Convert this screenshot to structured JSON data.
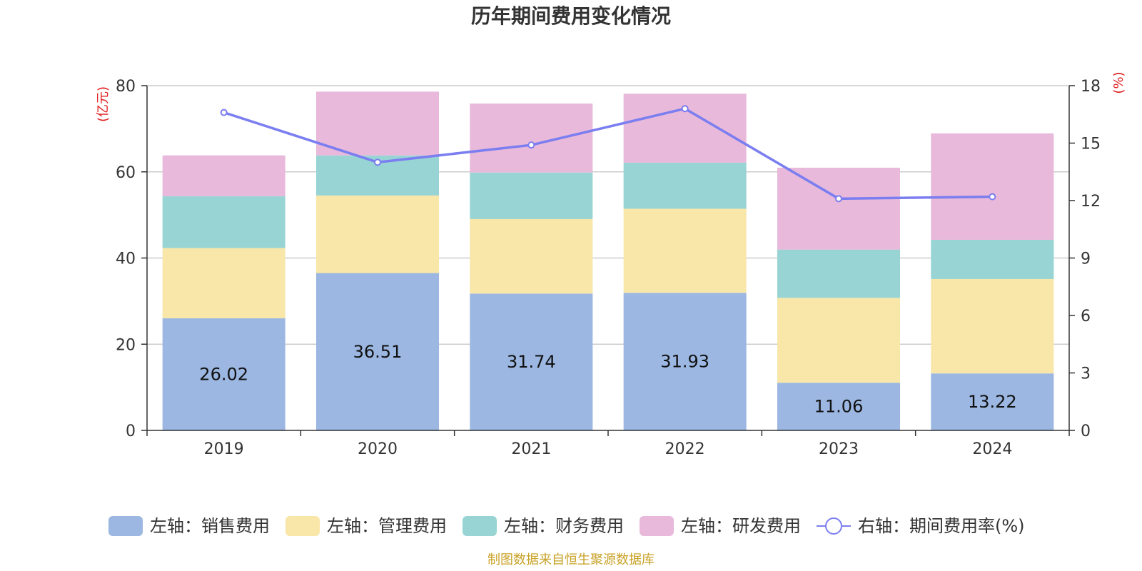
{
  "chart_data": {
    "type": "bar",
    "title": "历年期间费用变化情况",
    "categories": [
      "2019",
      "2020",
      "2021",
      "2022",
      "2023",
      "2024"
    ],
    "left_axis": {
      "unit": "(亿元)",
      "ylim": [
        0,
        80
      ],
      "ticks": [
        "0",
        "20",
        "40",
        "60",
        "80"
      ]
    },
    "right_axis": {
      "unit": "(%)",
      "ylim": [
        0,
        18
      ],
      "ticks": [
        "0",
        "3",
        "6",
        "9",
        "12",
        "15",
        "18"
      ]
    },
    "stacked": true,
    "series": [
      {
        "name": "左轴：销售费用",
        "axis": "left",
        "color": "#9bb7e2",
        "values": [
          26.02,
          36.51,
          31.74,
          31.93,
          11.06,
          13.22
        ],
        "labels": [
          "26.02",
          "36.51",
          "31.74",
          "31.93",
          "11.06",
          "13.22"
        ]
      },
      {
        "name": "左轴：管理费用",
        "axis": "left",
        "color": "#f8e7a8",
        "values": [
          16.3,
          18.0,
          17.3,
          19.5,
          19.7,
          21.9
        ]
      },
      {
        "name": "左轴：财务费用",
        "axis": "left",
        "color": "#98d4d4",
        "values": [
          12.0,
          9.3,
          10.8,
          10.7,
          11.2,
          9.1
        ]
      },
      {
        "name": "左轴：研发费用",
        "axis": "left",
        "color": "#e8b9da",
        "values": [
          9.5,
          14.8,
          16.0,
          16.0,
          19.0,
          24.7
        ]
      }
    ],
    "line_series": {
      "name": "右轴：期间费用率(%)",
      "axis": "right",
      "color": "#7b7ef0",
      "values": [
        16.6,
        14.0,
        14.9,
        16.8,
        12.1,
        12.2
      ]
    },
    "grid": true,
    "legend_position": "bottom"
  },
  "colors": {
    "unit_red": "#e02020",
    "source_gold": "#c9a227",
    "axis": "#333333",
    "grid": "#cccccc"
  },
  "source": "制图数据来自恒生聚源数据库"
}
